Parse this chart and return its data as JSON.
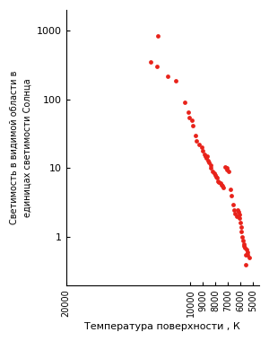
{
  "title": "",
  "xlabel": "Температура поверхности , К",
  "ylabel_line1": "Светимость в видимой области в",
  "ylabel_line2": "единицах светимости Солнца",
  "dot_color": "#e8221a",
  "dot_size": 12,
  "background_color": "#ffffff",
  "xlim": [
    20000,
    4500
  ],
  "ylim": [
    0.2,
    2000
  ],
  "xticks": [
    20000,
    10000,
    9000,
    8000,
    7000,
    6000,
    5000
  ],
  "yticks": [
    1,
    10,
    100,
    1000
  ],
  "stars": [
    [
      12600,
      850
    ],
    [
      13200,
      350
    ],
    [
      12700,
      300
    ],
    [
      11800,
      220
    ],
    [
      11200,
      185
    ],
    [
      10500,
      90
    ],
    [
      10200,
      65
    ],
    [
      10100,
      55
    ],
    [
      9900,
      50
    ],
    [
      9850,
      42
    ],
    [
      9600,
      30
    ],
    [
      9500,
      25
    ],
    [
      9300,
      22
    ],
    [
      9100,
      20
    ],
    [
      9000,
      18
    ],
    [
      8900,
      16
    ],
    [
      8800,
      15
    ],
    [
      8750,
      14
    ],
    [
      8700,
      15
    ],
    [
      8600,
      13
    ],
    [
      8500,
      12
    ],
    [
      8400,
      11
    ],
    [
      8350,
      10
    ],
    [
      8200,
      9
    ],
    [
      8100,
      8.5
    ],
    [
      8000,
      8.0
    ],
    [
      7950,
      7.5
    ],
    [
      7850,
      7.2
    ],
    [
      7800,
      6.5
    ],
    [
      7700,
      6.2
    ],
    [
      7600,
      6.0
    ],
    [
      7500,
      5.8
    ],
    [
      7450,
      5.5
    ],
    [
      7400,
      5.2
    ],
    [
      7200,
      10.5
    ],
    [
      7100,
      10.0
    ],
    [
      7050,
      9.5
    ],
    [
      6950,
      9.0
    ],
    [
      6800,
      5.0
    ],
    [
      6700,
      4.0
    ],
    [
      6600,
      3.0
    ],
    [
      6500,
      2.5
    ],
    [
      6400,
      2.2
    ],
    [
      6300,
      2.0
    ],
    [
      6200,
      2.5
    ],
    [
      6150,
      2.3
    ],
    [
      6100,
      2.1
    ],
    [
      6050,
      1.9
    ],
    [
      6000,
      1.6
    ],
    [
      5950,
      1.4
    ],
    [
      5900,
      1.2
    ],
    [
      5850,
      1.0
    ],
    [
      5800,
      0.9
    ],
    [
      5750,
      0.8
    ],
    [
      5700,
      0.75
    ],
    [
      5650,
      0.7
    ],
    [
      5600,
      0.55
    ],
    [
      5550,
      0.4
    ],
    [
      5500,
      0.65
    ],
    [
      5450,
      0.6
    ],
    [
      5400,
      0.55
    ],
    [
      5300,
      0.5
    ]
  ]
}
